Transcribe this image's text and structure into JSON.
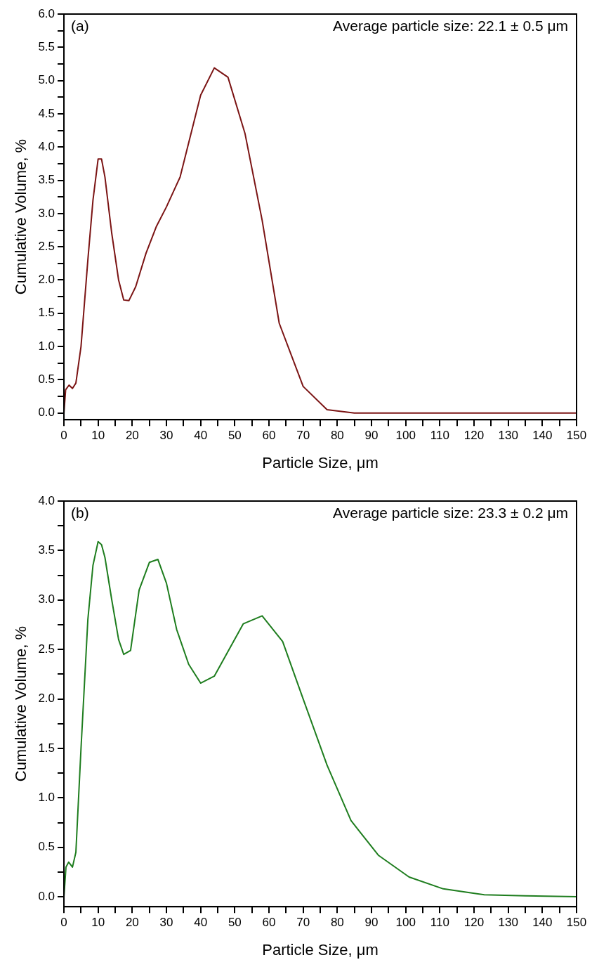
{
  "chart_data": [
    {
      "type": "line",
      "xlabel": "Particle Size, μm",
      "ylabel": "Cumulative Volume, %",
      "annotations": [
        "(a)",
        "Average particle size: 22.1 ± 0.5 μm"
      ],
      "series": [
        {
          "color": "#7b1414",
          "x": [
            0,
            0.5,
            1.5,
            2.5,
            3.5,
            5,
            7,
            8.5,
            10,
            11,
            12,
            14,
            16,
            17.5,
            19,
            21,
            24,
            27,
            30,
            34,
            40,
            44,
            48,
            53,
            58,
            63,
            70,
            77,
            85,
            150
          ],
          "values": [
            0,
            0.35,
            0.42,
            0.37,
            0.45,
            1.0,
            2.3,
            3.2,
            3.82,
            3.82,
            3.55,
            2.7,
            2.0,
            1.7,
            1.69,
            1.9,
            2.4,
            2.8,
            3.1,
            3.55,
            4.78,
            5.19,
            5.05,
            4.2,
            2.9,
            1.35,
            0.4,
            0.05,
            0,
            0
          ]
        }
      ],
      "xlim": [
        0,
        150
      ],
      "ylim": [
        -0.1,
        6
      ],
      "xticks": [
        0,
        {
          "value": 5,
          "label": null
        },
        10,
        {
          "value": 15,
          "label": null
        },
        20,
        {
          "value": 25,
          "label": null
        },
        30,
        {
          "value": 35,
          "label": null
        },
        40,
        {
          "value": 45,
          "label": null
        },
        50,
        {
          "value": 55,
          "label": null
        },
        60,
        {
          "value": 65,
          "label": null
        },
        70,
        {
          "value": 75,
          "label": null
        },
        80,
        {
          "value": 85,
          "label": null
        },
        90,
        {
          "value": 95,
          "label": null
        },
        100,
        {
          "value": 105,
          "label": null
        },
        110,
        {
          "value": 115,
          "label": null
        },
        120,
        {
          "value": 125,
          "label": null
        },
        130,
        {
          "value": 135,
          "label": null
        },
        140,
        {
          "value": 145,
          "label": null
        },
        150
      ],
      "yticks": [
        {
          "value": 0,
          "label": "0.0"
        },
        {
          "value": 0.25,
          "label": null
        },
        {
          "value": 0.5,
          "label": "0.5"
        },
        {
          "value": 0.75,
          "label": null
        },
        {
          "value": 1,
          "label": "1.0"
        },
        {
          "value": 1.25,
          "label": null
        },
        {
          "value": 1.5,
          "label": "1.5"
        },
        {
          "value": 1.75,
          "label": null
        },
        {
          "value": 2,
          "label": "2.0"
        },
        {
          "value": 2.25,
          "label": null
        },
        {
          "value": 2.5,
          "label": "2.5"
        },
        {
          "value": 2.75,
          "label": null
        },
        {
          "value": 3,
          "label": "3.0"
        },
        {
          "value": 3.25,
          "label": null
        },
        {
          "value": 3.5,
          "label": "3.5"
        },
        {
          "value": 3.75,
          "label": null
        },
        {
          "value": 4,
          "label": "4.0"
        },
        {
          "value": 4.25,
          "label": null
        },
        {
          "value": 4.5,
          "label": "4.5"
        },
        {
          "value": 4.75,
          "label": null
        },
        {
          "value": 5,
          "label": "5.0"
        },
        {
          "value": 5.25,
          "label": null
        },
        {
          "value": 5.5,
          "label": "5.5"
        },
        {
          "value": 5.75,
          "label": null
        },
        {
          "value": 6,
          "label": "6.0"
        }
      ],
      "grid": false,
      "legend": false
    },
    {
      "type": "line",
      "xlabel": "Particle Size, μm",
      "ylabel": "Cumulative Volume, %",
      "annotations": [
        "(b)",
        "Average particle size: 23.3 ± 0.2 μm"
      ],
      "series": [
        {
          "color": "#1e7d1e",
          "x": [
            0,
            0.6,
            1.4,
            2.5,
            3.5,
            5,
            7,
            8.5,
            10,
            11,
            12,
            14,
            16,
            17.5,
            19.5,
            22,
            25,
            27.5,
            30,
            33,
            36.5,
            40,
            44,
            52.5,
            58,
            64,
            70,
            77,
            84,
            92,
            101,
            111,
            123,
            135,
            150
          ],
          "values": [
            0,
            0.3,
            0.35,
            0.3,
            0.45,
            1.5,
            2.8,
            3.35,
            3.59,
            3.56,
            3.43,
            3.0,
            2.6,
            2.45,
            2.49,
            3.1,
            3.38,
            3.41,
            3.17,
            2.7,
            2.35,
            2.16,
            2.23,
            2.76,
            2.84,
            2.58,
            2.0,
            1.33,
            0.77,
            0.42,
            0.2,
            0.08,
            0.02,
            0.01,
            0
          ]
        }
      ],
      "xlim": [
        0,
        150
      ],
      "ylim": [
        -0.1,
        4
      ],
      "xticks": [
        0,
        {
          "value": 5,
          "label": null
        },
        10,
        {
          "value": 15,
          "label": null
        },
        20,
        {
          "value": 25,
          "label": null
        },
        30,
        {
          "value": 35,
          "label": null
        },
        40,
        {
          "value": 45,
          "label": null
        },
        50,
        {
          "value": 55,
          "label": null
        },
        60,
        {
          "value": 65,
          "label": null
        },
        70,
        {
          "value": 75,
          "label": null
        },
        80,
        {
          "value": 85,
          "label": null
        },
        90,
        {
          "value": 95,
          "label": null
        },
        100,
        {
          "value": 105,
          "label": null
        },
        110,
        {
          "value": 115,
          "label": null
        },
        120,
        {
          "value": 125,
          "label": null
        },
        130,
        {
          "value": 135,
          "label": null
        },
        140,
        {
          "value": 145,
          "label": null
        },
        150
      ],
      "yticks": [
        {
          "value": 0,
          "label": "0.0"
        },
        {
          "value": 0.25,
          "label": null
        },
        {
          "value": 0.5,
          "label": "0.5"
        },
        {
          "value": 0.75,
          "label": null
        },
        {
          "value": 1,
          "label": "1.0"
        },
        {
          "value": 1.25,
          "label": null
        },
        {
          "value": 1.5,
          "label": "1.5"
        },
        {
          "value": 1.75,
          "label": null
        },
        {
          "value": 2,
          "label": "2.0"
        },
        {
          "value": 2.25,
          "label": null
        },
        {
          "value": 2.5,
          "label": "2.5"
        },
        {
          "value": 2.75,
          "label": null
        },
        {
          "value": 3,
          "label": "3.0"
        },
        {
          "value": 3.25,
          "label": null
        },
        {
          "value": 3.5,
          "label": "3.5"
        },
        {
          "value": 3.75,
          "label": null
        },
        {
          "value": 4,
          "label": "4.0"
        }
      ],
      "grid": false,
      "legend": false
    }
  ]
}
